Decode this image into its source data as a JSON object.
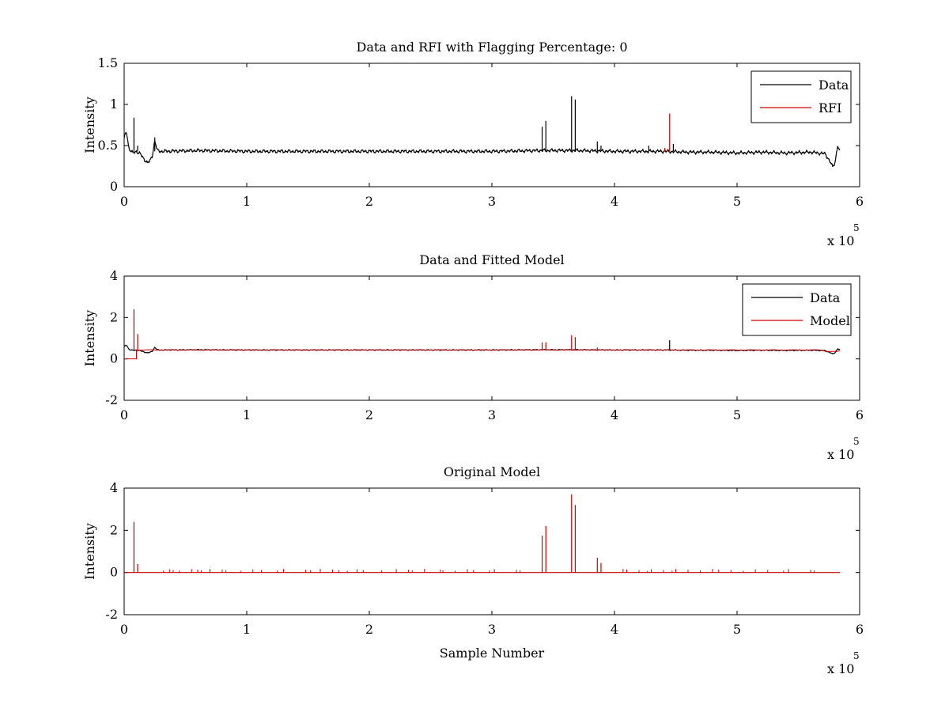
{
  "figure": {
    "background": "#ffffff",
    "colors": {
      "data": "#000000",
      "rfi": "#cc0000",
      "model": "#cc0000",
      "axis": "#000000"
    }
  },
  "chart_data": [
    {
      "type": "line",
      "title": "Data and RFI with Flagging Percentage: 0",
      "xlabel": "",
      "ylabel": "Intensity",
      "xlim": [
        0,
        6
      ],
      "ylim": [
        0,
        1.5
      ],
      "x_ticks": [
        "0",
        "1",
        "2",
        "3",
        "4",
        "5",
        "6"
      ],
      "y_ticks": [
        "0",
        "0.5",
        "1",
        "1.5"
      ],
      "x_multiplier": {
        "base": "x 10",
        "exponent": "5"
      },
      "legend": {
        "position": "top-right",
        "entries": [
          "Data",
          "RFI"
        ]
      },
      "baseline": {
        "x": [
          0.0,
          0.01,
          0.02,
          0.04,
          0.07,
          0.1,
          0.13,
          0.16,
          0.19,
          0.21,
          0.23,
          0.25,
          0.27,
          0.3,
          0.6,
          1.0,
          1.5,
          2.0,
          2.5,
          3.0,
          3.4,
          3.7,
          4.0,
          4.2,
          4.4,
          4.6,
          4.8,
          5.0,
          5.2,
          5.4,
          5.6,
          5.72,
          5.76,
          5.78,
          5.8,
          5.82,
          5.84
        ],
        "y": [
          0.58,
          0.64,
          0.66,
          0.46,
          0.41,
          0.43,
          0.4,
          0.34,
          0.29,
          0.31,
          0.38,
          0.56,
          0.44,
          0.43,
          0.44,
          0.43,
          0.43,
          0.43,
          0.43,
          0.43,
          0.44,
          0.44,
          0.43,
          0.43,
          0.43,
          0.42,
          0.42,
          0.41,
          0.42,
          0.41,
          0.42,
          0.4,
          0.3,
          0.24,
          0.3,
          0.5,
          0.41
        ]
      },
      "series": [
        {
          "name": "Data",
          "color": "#000000",
          "spikes": [
            {
              "x": 0.08,
              "y": 0.84
            },
            {
              "x": 0.11,
              "y": 0.5
            },
            {
              "x": 0.25,
              "y": 0.6
            },
            {
              "x": 3.41,
              "y": 0.73
            },
            {
              "x": 3.44,
              "y": 0.8
            },
            {
              "x": 3.65,
              "y": 1.1
            },
            {
              "x": 3.68,
              "y": 1.06
            },
            {
              "x": 3.86,
              "y": 0.55
            },
            {
              "x": 3.89,
              "y": 0.5
            },
            {
              "x": 4.28,
              "y": 0.5
            },
            {
              "x": 4.48,
              "y": 0.52
            }
          ]
        },
        {
          "name": "RFI",
          "color": "#cc0000",
          "spikes": [
            {
              "x": 4.41,
              "y": 0.47
            },
            {
              "x": 4.43,
              "y": 0.45
            },
            {
              "x": 4.45,
              "y": 0.89
            }
          ]
        }
      ]
    },
    {
      "type": "line",
      "title": "Data and Fitted Model",
      "xlabel": "",
      "ylabel": "Intensity",
      "xlim": [
        0,
        6
      ],
      "ylim": [
        -2,
        4
      ],
      "x_ticks": [
        "0",
        "1",
        "2",
        "3",
        "4",
        "5",
        "6"
      ],
      "y_ticks": [
        "-2",
        "0",
        "2",
        "4"
      ],
      "x_multiplier": {
        "base": "x 10",
        "exponent": "5"
      },
      "legend": {
        "position": "top-right",
        "entries": [
          "Data",
          "Model"
        ]
      },
      "baseline": {
        "x": [
          0.0,
          0.01,
          0.02,
          0.04,
          0.07,
          0.1,
          0.13,
          0.16,
          0.19,
          0.21,
          0.23,
          0.25,
          0.27,
          0.3,
          0.6,
          1.0,
          1.5,
          2.0,
          2.5,
          3.0,
          3.4,
          3.7,
          4.0,
          4.2,
          4.4,
          4.6,
          4.8,
          5.0,
          5.2,
          5.4,
          5.6,
          5.72,
          5.76,
          5.78,
          5.8,
          5.82,
          5.84
        ],
        "y": [
          0.58,
          0.64,
          0.66,
          0.46,
          0.41,
          0.43,
          0.4,
          0.34,
          0.29,
          0.31,
          0.38,
          0.56,
          0.44,
          0.43,
          0.44,
          0.43,
          0.43,
          0.43,
          0.43,
          0.43,
          0.44,
          0.44,
          0.43,
          0.43,
          0.43,
          0.42,
          0.42,
          0.41,
          0.42,
          0.41,
          0.42,
          0.4,
          0.3,
          0.24,
          0.3,
          0.5,
          0.41
        ]
      },
      "model_start": [
        0.0,
        0.0,
        0.1,
        0.4
      ],
      "series": [
        {
          "name": "Data",
          "color": "#000000",
          "spikes": [
            {
              "x": 4.45,
              "y": 0.9
            }
          ]
        },
        {
          "name": "Model",
          "color": "#cc0000",
          "spikes": [
            {
              "x": 0.08,
              "y": 2.4
            },
            {
              "x": 0.11,
              "y": 1.2
            },
            {
              "x": 3.41,
              "y": 0.8
            },
            {
              "x": 3.44,
              "y": 0.8
            },
            {
              "x": 3.65,
              "y": 1.15
            },
            {
              "x": 3.68,
              "y": 1.05
            },
            {
              "x": 3.86,
              "y": 0.55
            }
          ]
        }
      ]
    },
    {
      "type": "line",
      "title": "Original Model",
      "xlabel": "Sample Number",
      "ylabel": "Intensity",
      "xlim": [
        0,
        6
      ],
      "ylim": [
        -2,
        4
      ],
      "x_ticks": [
        "0",
        "1",
        "2",
        "3",
        "4",
        "5",
        "6"
      ],
      "y_ticks": [
        "-2",
        "0",
        "2",
        "4"
      ],
      "x_multiplier": {
        "base": "x 10",
        "exponent": "5"
      },
      "legend": null,
      "x_end": 5.84,
      "series": [
        {
          "name": "Original Model",
          "color": "#cc0000",
          "spikes": [
            {
              "x": 0.08,
              "y": 2.4
            },
            {
              "x": 0.11,
              "y": 0.4
            },
            {
              "x": 3.41,
              "y": 1.75
            },
            {
              "x": 3.44,
              "y": 2.2
            },
            {
              "x": 3.65,
              "y": 3.7
            },
            {
              "x": 3.68,
              "y": 3.2
            },
            {
              "x": 3.86,
              "y": 0.7
            },
            {
              "x": 3.89,
              "y": 0.45
            }
          ],
          "small_spikes_x": [
            0.32,
            0.37,
            0.4,
            0.45,
            0.55,
            0.6,
            0.63,
            0.7,
            0.8,
            0.83,
            0.95,
            1.05,
            1.12,
            1.25,
            1.3,
            1.48,
            1.52,
            1.6,
            1.7,
            1.75,
            1.82,
            1.9,
            1.95,
            2.1,
            2.22,
            2.32,
            2.35,
            2.45,
            2.58,
            2.6,
            2.7,
            2.8,
            2.85,
            2.98,
            3.02,
            3.2,
            3.23,
            4.07,
            4.1,
            4.2,
            4.27,
            4.3,
            4.4,
            4.47,
            4.5,
            4.6,
            4.7,
            4.8,
            4.85,
            4.95,
            5.05,
            5.15,
            5.25,
            5.38,
            5.42,
            5.6,
            5.63
          ]
        }
      ]
    }
  ]
}
